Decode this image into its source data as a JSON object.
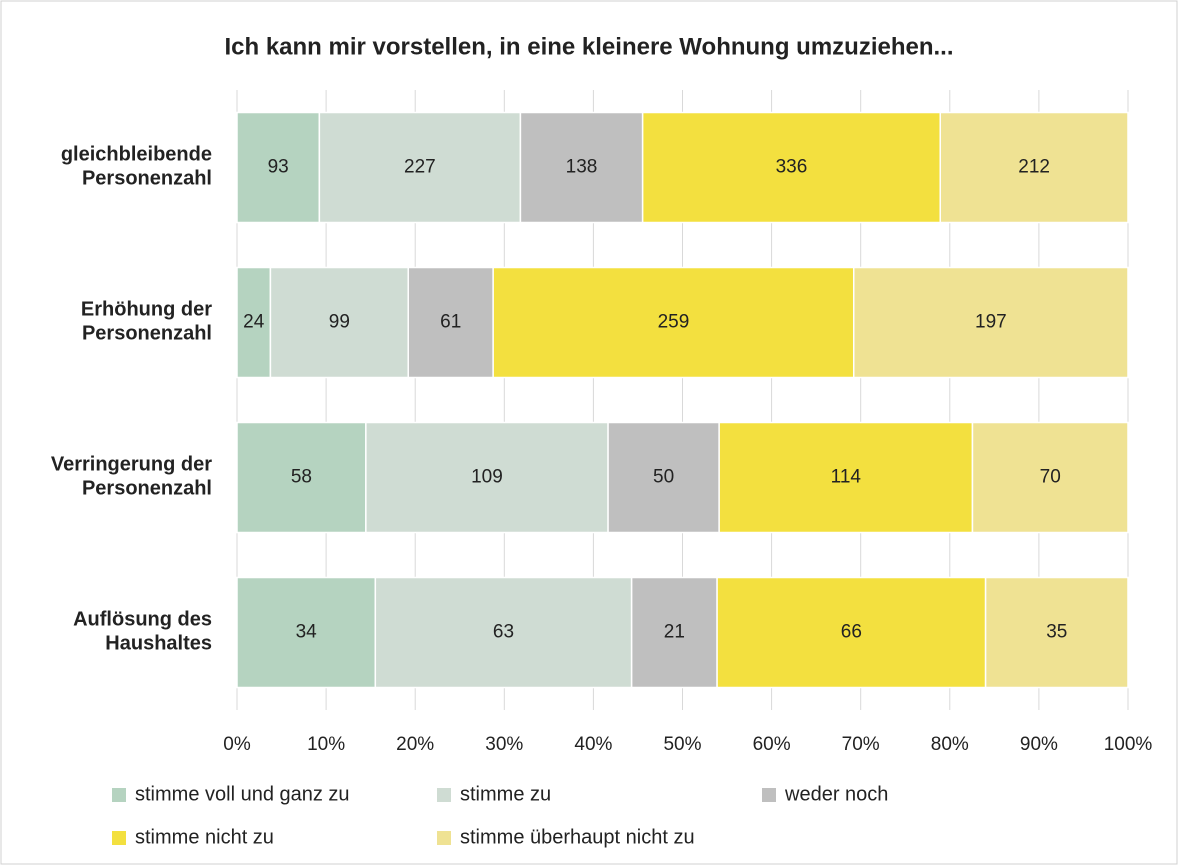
{
  "chart_data": {
    "type": "stacked_bar_100",
    "orientation": "horizontal",
    "title": "Ich kann mir vorstellen, in eine kleinere Wohnung umzuziehen...",
    "categories": [
      [
        "gleichbleibende",
        "Personenzahl"
      ],
      [
        "Erhöhung der",
        "Personenzahl"
      ],
      [
        "Verringerung der",
        "Personenzahl"
      ],
      [
        "Auflösung des",
        "Haushaltes"
      ]
    ],
    "series": [
      {
        "name": "stimme voll und ganz zu",
        "color": "#b5d3c0",
        "values": [
          93,
          24,
          58,
          34
        ]
      },
      {
        "name": "stimme zu",
        "color": "#cfdcd3",
        "values": [
          227,
          99,
          109,
          63
        ]
      },
      {
        "name": "weder noch",
        "color": "#bfbfbf",
        "values": [
          138,
          61,
          50,
          21
        ]
      },
      {
        "name": "stimme nicht zu",
        "color": "#f3e03f",
        "values": [
          336,
          259,
          114,
          66
        ]
      },
      {
        "name": "stimme überhaupt nicht zu",
        "color": "#efe293",
        "values": [
          212,
          197,
          70,
          35
        ]
      }
    ],
    "xlim": [
      0,
      100
    ],
    "xticks": [
      {
        "value": 0,
        "label": "0%"
      },
      {
        "value": 10,
        "label": "10%"
      },
      {
        "value": 20,
        "label": "20%"
      },
      {
        "value": 30,
        "label": "30%"
      },
      {
        "value": 40,
        "label": "40%"
      },
      {
        "value": 50,
        "label": "50%"
      },
      {
        "value": 60,
        "label": "60%"
      },
      {
        "value": 70,
        "label": "70%"
      },
      {
        "value": 80,
        "label": "80%"
      },
      {
        "value": 90,
        "label": "90%"
      },
      {
        "value": 100,
        "label": "100%"
      }
    ],
    "grid": true,
    "legend": "bottom"
  }
}
